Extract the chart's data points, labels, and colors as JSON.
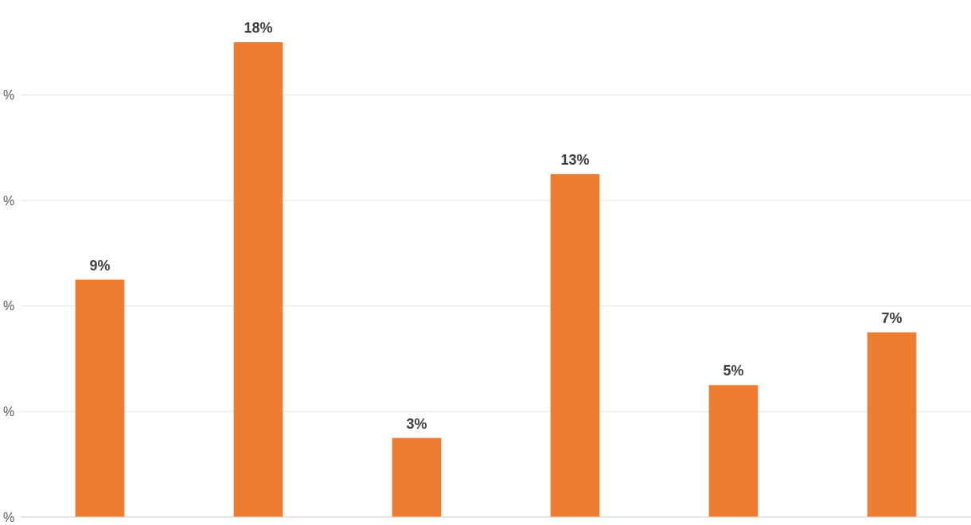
{
  "chart_data": {
    "type": "bar",
    "categories": [
      null,
      null,
      null,
      null,
      null,
      null
    ],
    "values": [
      9,
      18,
      3,
      13,
      5,
      7
    ],
    "color": "#ed7d31",
    "value_labels": [
      "9%",
      "18%",
      "3%",
      "13%",
      "5%",
      "7%"
    ],
    "ylim": [
      0,
      19.6
    ],
    "yticks": [
      {
        "value": 0,
        "label": null
      },
      {
        "value": 4,
        "label": null
      },
      {
        "value": 8,
        "label": null
      },
      {
        "value": 12,
        "label": null
      },
      {
        "value": 16,
        "label": null
      }
    ],
    "annotations": [
      "%",
      "%",
      "%",
      "%",
      "%"
    ],
    "grid": "y",
    "tick_labels": "y"
  }
}
